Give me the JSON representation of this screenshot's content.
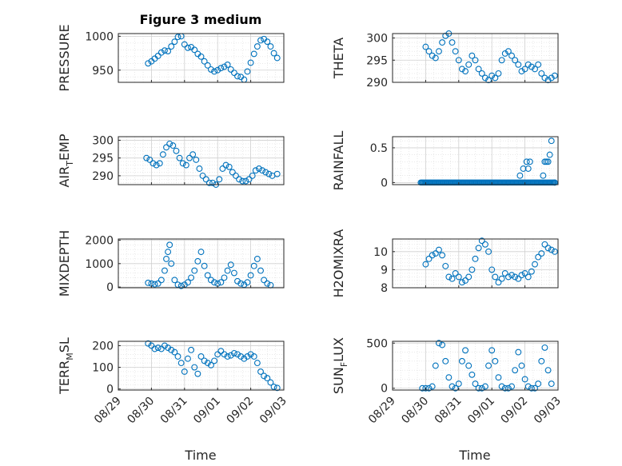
{
  "figure": {
    "title": "Figure 3 medium",
    "x_label": "Time",
    "x_ticks": [
      "08/29",
      "08/30",
      "08/31",
      "09/01",
      "09/02",
      "09/03"
    ],
    "marker_color": "#0072BD"
  },
  "chart_data": [
    {
      "type": "scatter",
      "ylabel": "PRESSURE",
      "xlim": [
        0,
        5
      ],
      "ylim": [
        932,
        1004
      ],
      "yticks": [
        950,
        1000
      ],
      "x": [
        0.9,
        1.0,
        1.1,
        1.2,
        1.3,
        1.4,
        1.5,
        1.6,
        1.7,
        1.8,
        1.9,
        2.0,
        2.1,
        2.2,
        2.3,
        2.4,
        2.5,
        2.6,
        2.7,
        2.8,
        2.9,
        3.0,
        3.1,
        3.2,
        3.3,
        3.4,
        3.5,
        3.6,
        3.7,
        3.8,
        3.9,
        4.0,
        4.1,
        4.2,
        4.3,
        4.4,
        4.5,
        4.6,
        4.7,
        4.8
      ],
      "values": [
        960,
        963,
        967,
        971,
        976,
        979,
        978,
        985,
        992,
        999,
        1000,
        988,
        983,
        984,
        980,
        974,
        970,
        963,
        957,
        951,
        948,
        950,
        953,
        955,
        958,
        951,
        946,
        941,
        940,
        936,
        948,
        961,
        974,
        985,
        994,
        996,
        992,
        985,
        975,
        968
      ]
    },
    {
      "type": "scatter",
      "ylabel": "THETA",
      "xlim": [
        0,
        5
      ],
      "ylim": [
        290,
        301
      ],
      "yticks": [
        290,
        295,
        300
      ],
      "x": [
        1.0,
        1.1,
        1.2,
        1.3,
        1.4,
        1.5,
        1.6,
        1.7,
        1.8,
        1.9,
        2.0,
        2.1,
        2.2,
        2.3,
        2.4,
        2.5,
        2.6,
        2.7,
        2.8,
        2.9,
        3.0,
        3.1,
        3.2,
        3.3,
        3.4,
        3.5,
        3.6,
        3.7,
        3.8,
        3.9,
        4.0,
        4.1,
        4.2,
        4.3,
        4.4,
        4.5,
        4.6,
        4.7,
        4.8,
        4.9
      ],
      "values": [
        298,
        297,
        296,
        295.5,
        297,
        299,
        300.5,
        301,
        299,
        297,
        295,
        293,
        292.5,
        294,
        296,
        295,
        293,
        292,
        291,
        290.5,
        291.5,
        291,
        292,
        295,
        296.5,
        297,
        296,
        295,
        294,
        292.5,
        293,
        294,
        293.5,
        293,
        294,
        292,
        291,
        290.5,
        291,
        291.5
      ]
    },
    {
      "type": "scatter",
      "ylabel": "AIR_TEMP",
      "ylabel_main": "AIR",
      "ylabel_sub": "T",
      "ylabel_rest": "EMP",
      "xlim": [
        0,
        5
      ],
      "ylim": [
        287.5,
        301
      ],
      "yticks": [
        290,
        295,
        300
      ],
      "x": [
        0.85,
        0.95,
        1.05,
        1.15,
        1.25,
        1.35,
        1.45,
        1.55,
        1.65,
        1.75,
        1.85,
        1.95,
        2.05,
        2.15,
        2.25,
        2.35,
        2.45,
        2.55,
        2.65,
        2.75,
        2.85,
        2.95,
        3.05,
        3.15,
        3.25,
        3.35,
        3.45,
        3.55,
        3.65,
        3.75,
        3.85,
        3.95,
        4.05,
        4.15,
        4.25,
        4.35,
        4.45,
        4.55,
        4.65,
        4.8
      ],
      "values": [
        295,
        294.5,
        293.5,
        293,
        293.5,
        296,
        298,
        299,
        298.5,
        297,
        295,
        293.5,
        293,
        295,
        296,
        294.5,
        292,
        290,
        289,
        288,
        288,
        287.5,
        289,
        292,
        293,
        292.5,
        291,
        290,
        289,
        288.5,
        288.5,
        289,
        290,
        291.5,
        292,
        291.5,
        291,
        290.5,
        290,
        290.5
      ]
    },
    {
      "type": "scatter",
      "ylabel": "RAINFALL",
      "xlim": [
        0,
        5
      ],
      "ylim": [
        -0.03,
        0.66
      ],
      "yticks": [
        0,
        0.5
      ],
      "ytick_labels": [
        "0",
        "0.5"
      ],
      "baseline_x_range": [
        0.85,
        4.9
      ],
      "baseline_value": 0,
      "x": [
        3.85,
        3.95,
        4.05,
        4.1,
        4.15,
        4.55,
        4.6,
        4.65,
        4.7,
        4.75,
        4.8,
        4.9
      ],
      "values": [
        0.1,
        0.2,
        0.3,
        0.2,
        0.3,
        0.1,
        0.3,
        0.3,
        0.3,
        0.4,
        0.6,
        0
      ]
    },
    {
      "type": "scatter",
      "ylabel": "MIXDEPTH",
      "xlim": [
        0,
        5
      ],
      "ylim": [
        -30,
        2050
      ],
      "yticks": [
        0,
        1000,
        2000
      ],
      "x": [
        0.9,
        1.0,
        1.1,
        1.2,
        1.3,
        1.4,
        1.45,
        1.5,
        1.55,
        1.6,
        1.7,
        1.8,
        1.9,
        2.0,
        2.1,
        2.2,
        2.3,
        2.4,
        2.5,
        2.6,
        2.7,
        2.8,
        2.9,
        3.0,
        3.1,
        3.2,
        3.3,
        3.4,
        3.5,
        3.6,
        3.7,
        3.8,
        3.9,
        4.0,
        4.1,
        4.2,
        4.3,
        4.4,
        4.5,
        4.6
      ],
      "values": [
        180,
        150,
        120,
        150,
        300,
        700,
        1200,
        1500,
        1800,
        1000,
        300,
        100,
        50,
        100,
        200,
        400,
        700,
        1100,
        1500,
        900,
        500,
        300,
        200,
        150,
        200,
        400,
        700,
        950,
        600,
        250,
        150,
        100,
        200,
        500,
        900,
        1200,
        700,
        300,
        150,
        80
      ]
    },
    {
      "type": "scatter",
      "ylabel": "H2OMIXRA",
      "xlim": [
        0,
        5
      ],
      "ylim": [
        8,
        10.7
      ],
      "yticks": [
        8,
        9,
        10
      ],
      "x": [
        1.0,
        1.1,
        1.2,
        1.3,
        1.4,
        1.5,
        1.6,
        1.7,
        1.8,
        1.9,
        2.0,
        2.1,
        2.2,
        2.3,
        2.4,
        2.5,
        2.6,
        2.7,
        2.8,
        2.9,
        3.0,
        3.1,
        3.2,
        3.3,
        3.4,
        3.5,
        3.6,
        3.7,
        3.8,
        3.9,
        4.0,
        4.1,
        4.2,
        4.3,
        4.4,
        4.5,
        4.6,
        4.7,
        4.8,
        4.9
      ],
      "values": [
        9.3,
        9.6,
        9.8,
        9.9,
        10.1,
        9.8,
        9.2,
        8.6,
        8.5,
        8.8,
        8.6,
        8.3,
        8.4,
        8.6,
        9.0,
        9.6,
        10.2,
        10.6,
        10.4,
        10.0,
        9.0,
        8.6,
        8.3,
        8.5,
        8.8,
        8.6,
        8.7,
        8.6,
        8.5,
        8.7,
        8.8,
        8.6,
        8.9,
        9.3,
        9.7,
        9.9,
        10.4,
        10.2,
        10.1,
        10.0
      ]
    },
    {
      "type": "scatter",
      "ylabel": "TERR_MSL",
      "ylabel_main": "TERR",
      "ylabel_sub": "M",
      "ylabel_rest": "SL",
      "xlim": [
        0,
        5
      ],
      "ylim": [
        -5,
        220
      ],
      "yticks": [
        0,
        100,
        200
      ],
      "x": [
        0.9,
        1.0,
        1.1,
        1.2,
        1.3,
        1.4,
        1.5,
        1.6,
        1.7,
        1.8,
        1.9,
        2.0,
        2.1,
        2.2,
        2.3,
        2.4,
        2.5,
        2.6,
        2.7,
        2.8,
        2.9,
        3.0,
        3.1,
        3.2,
        3.3,
        3.4,
        3.5,
        3.6,
        3.7,
        3.8,
        3.9,
        4.0,
        4.1,
        4.2,
        4.3,
        4.4,
        4.5,
        4.6,
        4.7,
        4.8
      ],
      "values": [
        210,
        200,
        185,
        190,
        185,
        200,
        190,
        180,
        170,
        150,
        120,
        80,
        140,
        180,
        100,
        70,
        150,
        130,
        120,
        110,
        130,
        160,
        175,
        160,
        150,
        155,
        165,
        160,
        150,
        140,
        150,
        160,
        150,
        120,
        80,
        60,
        50,
        30,
        10,
        5
      ]
    },
    {
      "type": "scatter",
      "ylabel": "SUN_FLUX",
      "ylabel_main": "SUN",
      "ylabel_sub": "F",
      "ylabel_rest": "LUX",
      "xlim": [
        0,
        5
      ],
      "ylim": [
        -20,
        520
      ],
      "yticks": [
        0,
        500
      ],
      "x": [
        0.9,
        1.0,
        1.1,
        1.2,
        1.3,
        1.4,
        1.5,
        1.6,
        1.7,
        1.8,
        1.9,
        2.0,
        2.1,
        2.2,
        2.3,
        2.4,
        2.5,
        2.6,
        2.7,
        2.8,
        2.9,
        3.0,
        3.1,
        3.2,
        3.3,
        3.4,
        3.5,
        3.6,
        3.7,
        3.8,
        3.9,
        4.0,
        4.1,
        4.2,
        4.3,
        4.4,
        4.5,
        4.6,
        4.7,
        4.8
      ],
      "values": [
        0,
        0,
        0,
        20,
        250,
        500,
        480,
        300,
        120,
        20,
        0,
        50,
        300,
        420,
        250,
        150,
        50,
        0,
        0,
        20,
        250,
        420,
        300,
        120,
        20,
        0,
        0,
        20,
        200,
        400,
        250,
        100,
        20,
        0,
        0,
        50,
        300,
        450,
        200,
        50
      ]
    }
  ]
}
